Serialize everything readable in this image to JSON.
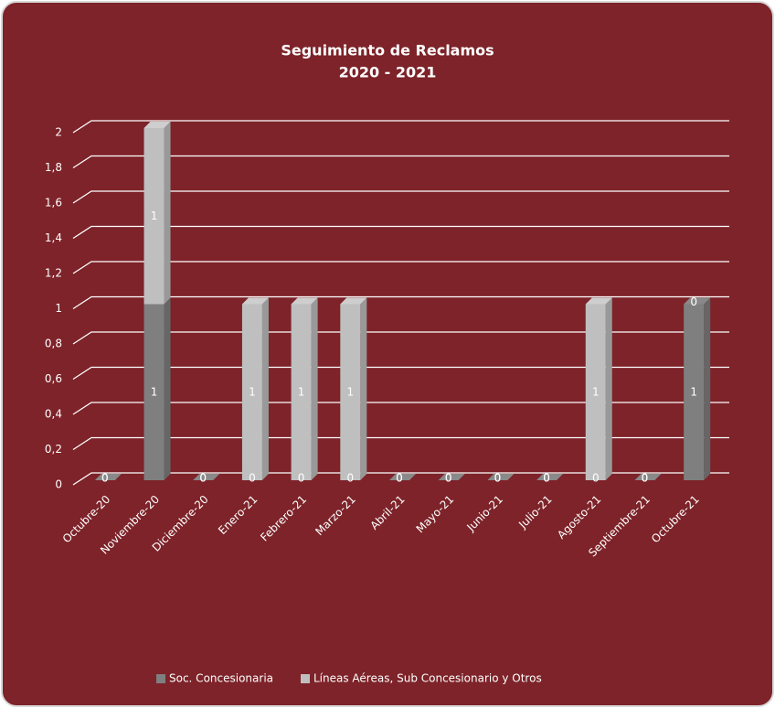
{
  "chart_data": {
    "type": "bar3d_stacked",
    "title": "Seguimiento de Reclamos",
    "subtitle": "2020 - 2021",
    "categories": [
      "Octubre-20",
      "Noviembre-20",
      "Diciembre-20",
      "Enero-21",
      "Febrero-21",
      "Marzo-21",
      "Abril-21",
      "Mayo-21",
      "Junio-21",
      "Julio-21",
      "Agosto-21",
      "Septiembre-21",
      "Octubre-21"
    ],
    "series": [
      {
        "name": "Soc. Concesionaria",
        "color": "#7f7f7f",
        "values": [
          0,
          1,
          0,
          0,
          0,
          0,
          0,
          0,
          0,
          0,
          0,
          0,
          1
        ]
      },
      {
        "name": "Líneas Aéreas, Sub Concesionario y Otros",
        "color": "#bfbfbf",
        "values": [
          0,
          1,
          0,
          1,
          1,
          1,
          0,
          0,
          0,
          0,
          1,
          0,
          0
        ]
      }
    ],
    "ylim": [
      0,
      2
    ],
    "yticks": [
      0,
      {
        "value": 0.2,
        "label": "0,2"
      },
      {
        "value": 0.4,
        "label": "0,4"
      },
      {
        "value": 0.6,
        "label": "0,6"
      },
      {
        "value": 0.8,
        "label": "0,8"
      },
      1,
      {
        "value": 1.2,
        "label": "1,2"
      },
      {
        "value": 1.4,
        "label": "1,4"
      },
      {
        "value": 1.6,
        "label": "1,6"
      },
      {
        "value": 1.8,
        "label": "1,8"
      },
      2
    ],
    "grid": true,
    "legend": "bottom"
  }
}
